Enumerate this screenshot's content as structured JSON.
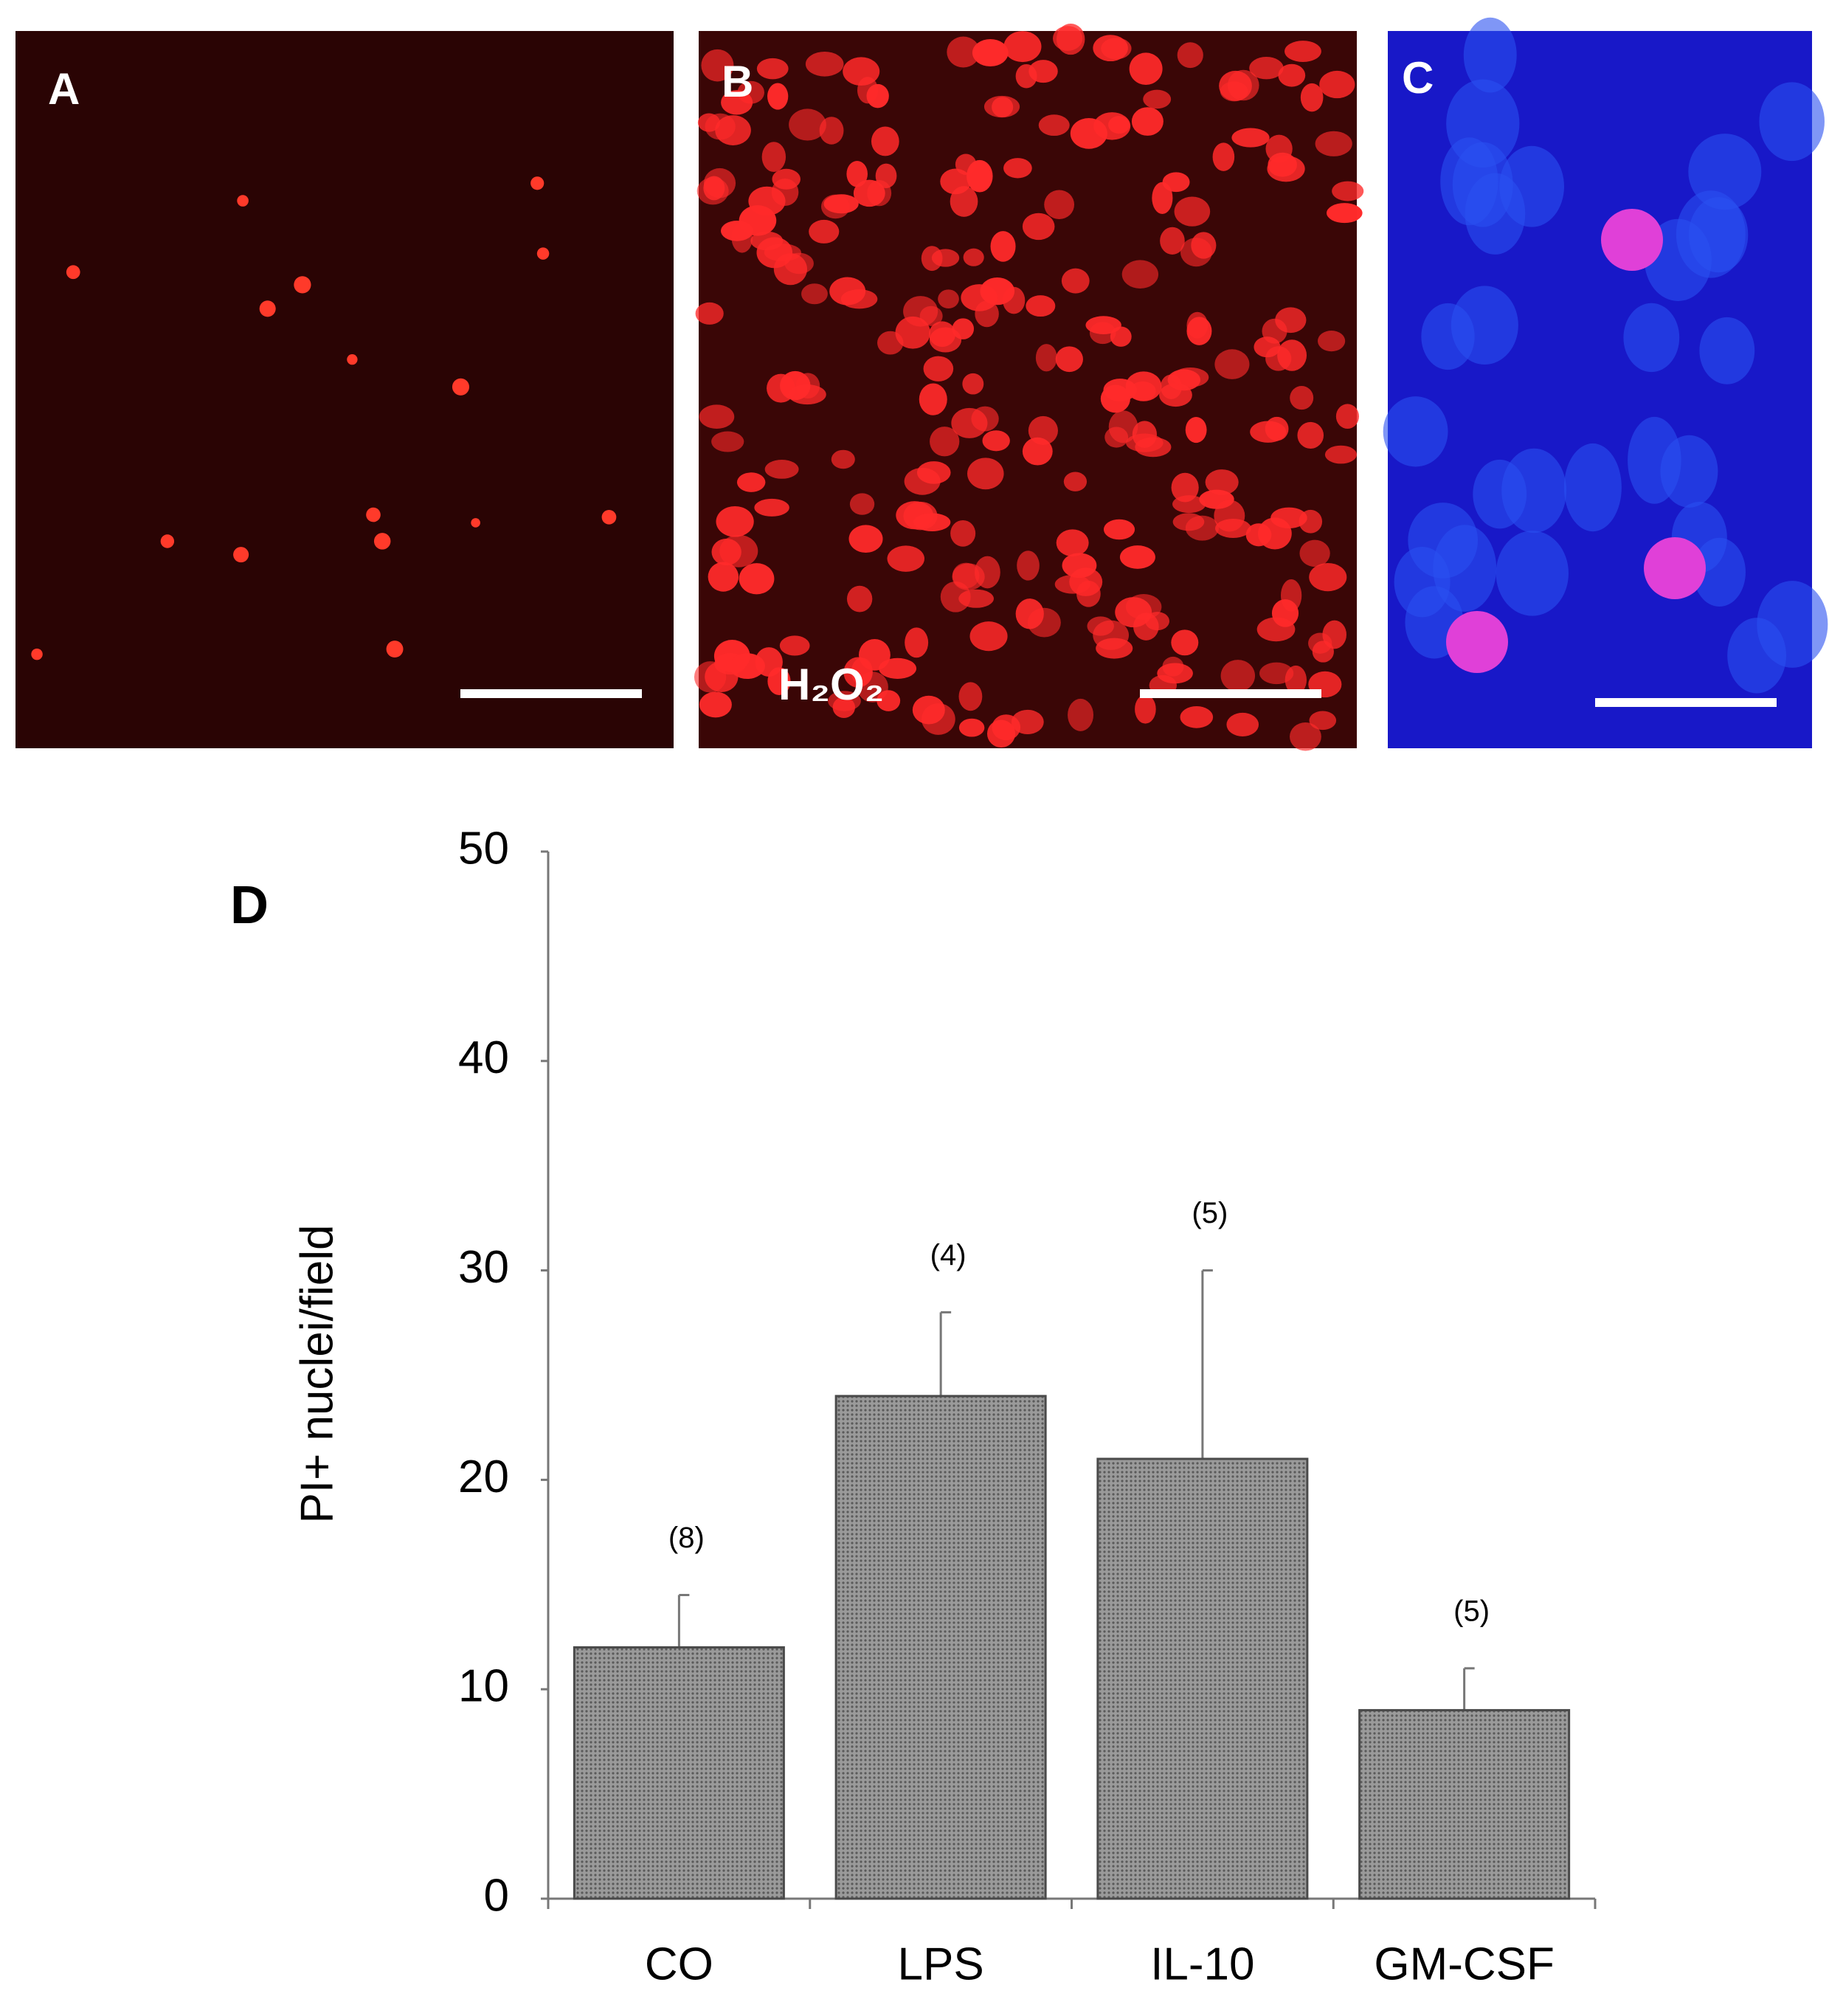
{
  "panel_labels": [
    "A",
    "B",
    "C"
  ],
  "treatment_label": "H₂O₂",
  "chart_data": {
    "type": "bar",
    "panel_label": "D",
    "y_label": "PI+ nuclei/field",
    "categories": [
      "CO",
      "LPS",
      "IL-10",
      "GM-CSF"
    ],
    "values": [
      12,
      24,
      21,
      9
    ],
    "errors": [
      2.5,
      4,
      9,
      2
    ],
    "n_labels": [
      "(8)",
      "(4)",
      "(5)",
      "(5)"
    ],
    "color": "#8c8c8c",
    "ylim": [
      0,
      50
    ],
    "yticks": [
      0,
      10,
      20,
      30,
      40,
      50
    ],
    "grid": false
  }
}
